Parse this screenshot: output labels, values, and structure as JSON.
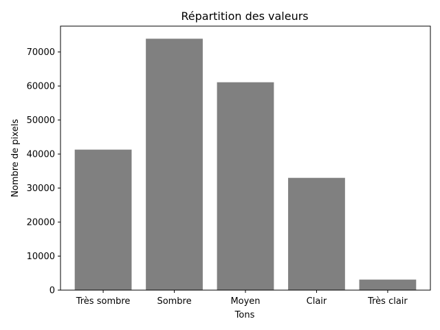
{
  "chart_data": {
    "type": "bar",
    "title": "Répartition des valeurs",
    "xlabel": "Tons",
    "ylabel": "Nombre de pixels",
    "categories": [
      "Très sombre",
      "Sombre",
      "Moyen",
      "Clair",
      "Très clair"
    ],
    "values": [
      41300,
      73900,
      61100,
      33000,
      3100
    ],
    "yticks": [
      0,
      10000,
      20000,
      30000,
      40000,
      50000,
      60000,
      70000
    ],
    "ylim": [
      0,
      77600
    ],
    "grid": false,
    "bar_color": "#808080"
  }
}
